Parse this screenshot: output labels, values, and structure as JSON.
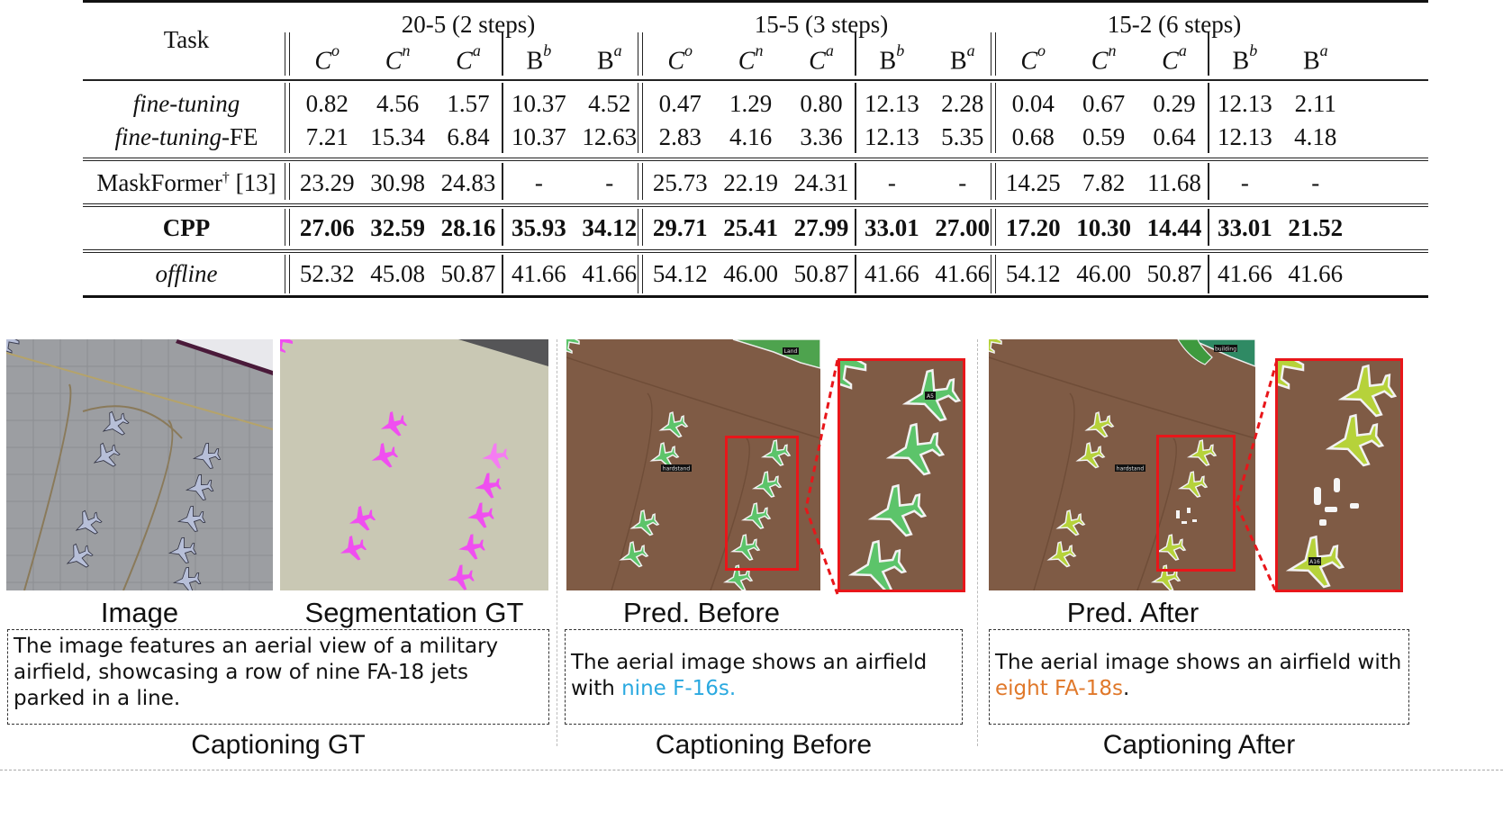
{
  "table": {
    "task_header": "Task",
    "groups": [
      {
        "label": "20-5 (2 steps)"
      },
      {
        "label": "15-5 (3 steps)"
      },
      {
        "label": "15-2 (6 steps)"
      }
    ],
    "column_headers": [
      {
        "base": "C",
        "sup": "o",
        "italic": true
      },
      {
        "base": "C",
        "sup": "n",
        "italic": true
      },
      {
        "base": "C",
        "sup": "a",
        "italic": true
      },
      {
        "base": "B",
        "sup": "b",
        "italic": false
      },
      {
        "base": "B",
        "sup": "a",
        "italic": false
      }
    ],
    "rows": [
      {
        "method": "fine-tuning",
        "method_suffix": "",
        "style": "italic",
        "values": [
          "0.82",
          "4.56",
          "1.57",
          "10.37",
          "4.52",
          "0.47",
          "1.29",
          "0.80",
          "12.13",
          "2.28",
          "0.04",
          "0.67",
          "0.29",
          "12.13",
          "2.11"
        ]
      },
      {
        "method": "fine-tuning",
        "method_suffix": "-FE",
        "style": "italic",
        "values": [
          "7.21",
          "15.34",
          "6.84",
          "10.37",
          "12.63",
          "2.83",
          "4.16",
          "3.36",
          "12.13",
          "5.35",
          "0.68",
          "0.59",
          "0.64",
          "12.13",
          "4.18"
        ]
      },
      {
        "method": "MaskFormer",
        "method_sup": "†",
        "method_suffix": " [13]",
        "style": "normal",
        "values": [
          "23.29",
          "30.98",
          "24.83",
          "-",
          "-",
          "25.73",
          "22.19",
          "24.31",
          "-",
          "-",
          "14.25",
          "7.82",
          "11.68",
          "-",
          "-"
        ]
      },
      {
        "method": "CPP",
        "method_suffix": "",
        "style": "bold",
        "values": [
          "27.06",
          "32.59",
          "28.16",
          "35.93",
          "34.12",
          "29.71",
          "25.41",
          "27.99",
          "33.01",
          "27.00",
          "17.20",
          "10.30",
          "14.44",
          "33.01",
          "21.52"
        ]
      },
      {
        "method": "offline",
        "method_suffix": "",
        "style": "italic",
        "values": [
          "52.32",
          "45.08",
          "50.87",
          "41.66",
          "41.66",
          "54.12",
          "46.00",
          "50.87",
          "41.66",
          "41.66",
          "54.12",
          "46.00",
          "50.87",
          "41.66",
          "41.66"
        ]
      }
    ]
  },
  "figure": {
    "panels": [
      {
        "label": "Image"
      },
      {
        "label": "Segmentation GT"
      },
      {
        "label": "Pred. Before",
        "mask_labels": [
          "Land",
          "hardstand",
          "A5"
        ]
      },
      {
        "label": "Pred. After",
        "mask_labels": [
          "building",
          "hardstand",
          "A16"
        ]
      }
    ],
    "captions": [
      {
        "title": "Captioning GT",
        "text": "The image features an aerial view of a military airfield, showcasing a row of nine FA-18 jets parked in a line.",
        "highlight": ""
      },
      {
        "title": "Captioning Before",
        "text": "The aerial image shows an airfield with ",
        "highlight": "nine F-16s.",
        "tail": ""
      },
      {
        "title": "Captioning After",
        "text": "The aerial image shows an airfield with ",
        "highlight": "eight FA-18s",
        "tail": "."
      }
    ],
    "colors": {
      "gt_mask": "#f04ef0",
      "before_mask": "#5cc46a",
      "after_mask": "#b6d23a",
      "zoom_box": "#e8161a",
      "highlight_before": "#2aa9e0",
      "highlight_after": "#e0782a"
    }
  }
}
